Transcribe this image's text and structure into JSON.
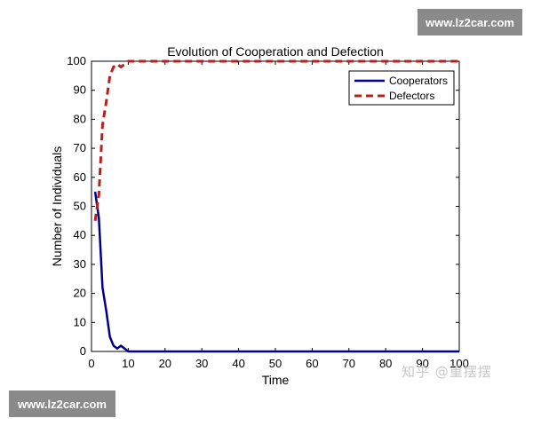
{
  "watermarks": {
    "top_right": "www.lz2car.com",
    "bottom_left": "www.lz2car.com",
    "zhihu": "知乎 @重摆摆"
  },
  "chart_data": {
    "type": "line",
    "title": "Evolution of Cooperation and Defection",
    "xlabel": "Time",
    "ylabel": "Number of Individuals",
    "xlim": [
      0,
      100
    ],
    "ylim": [
      0,
      100
    ],
    "xticks": [
      0,
      10,
      20,
      30,
      40,
      50,
      60,
      70,
      80,
      90,
      100
    ],
    "yticks": [
      0,
      10,
      20,
      30,
      40,
      50,
      60,
      70,
      80,
      90,
      100
    ],
    "grid": false,
    "legend_position": "top-right",
    "series": [
      {
        "name": "Cooperators",
        "color": "#00008b",
        "style": "solid",
        "x": [
          1,
          2,
          3,
          4,
          5,
          6,
          7,
          8,
          9,
          10,
          11,
          12,
          15,
          20,
          30,
          40,
          50,
          60,
          70,
          80,
          90,
          100
        ],
        "values": [
          55,
          46,
          22,
          14,
          5,
          2,
          1,
          2,
          1,
          0,
          0,
          0,
          0,
          0,
          0,
          0,
          0,
          0,
          0,
          0,
          0,
          0
        ]
      },
      {
        "name": "Defectors",
        "color": "#b22222",
        "style": "dashed",
        "x": [
          1,
          2,
          3,
          4,
          5,
          6,
          7,
          8,
          9,
          10,
          11,
          12,
          15,
          20,
          30,
          40,
          50,
          60,
          70,
          80,
          90,
          100
        ],
        "values": [
          45,
          54,
          78,
          86,
          95,
          98,
          99,
          98,
          99,
          100,
          100,
          100,
          100,
          100,
          100,
          100,
          100,
          100,
          100,
          100,
          100,
          100
        ]
      }
    ]
  }
}
